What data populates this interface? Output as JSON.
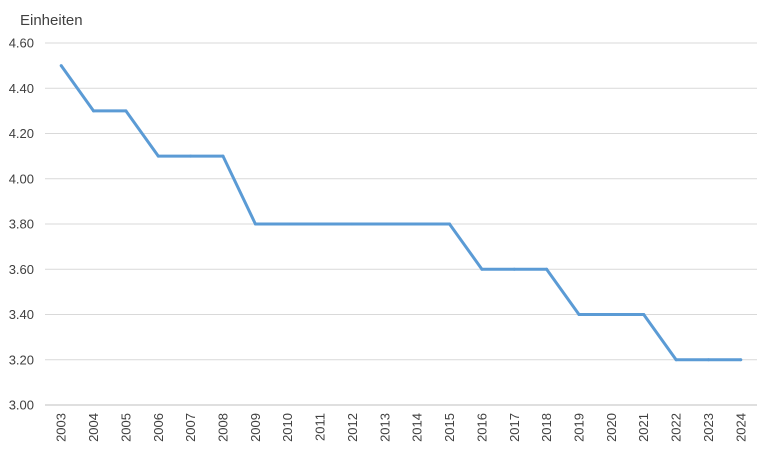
{
  "chart_data": {
    "type": "line",
    "unit_label": "Einheiten",
    "x": [
      "2003",
      "2004",
      "2005",
      "2006",
      "2007",
      "2008",
      "2009",
      "2010",
      "2011",
      "2012",
      "2013",
      "2014",
      "2015",
      "2016",
      "2017",
      "2018",
      "2019",
      "2020",
      "2021",
      "2022",
      "2023",
      "2024"
    ],
    "series": [
      {
        "values": [
          4.5,
          4.3,
          4.3,
          4.1,
          4.1,
          4.1,
          3.8,
          3.8,
          3.8,
          3.8,
          3.8,
          3.8,
          3.8,
          3.6,
          3.6,
          3.6,
          3.4,
          3.4,
          3.4,
          3.2,
          3.2,
          3.2
        ]
      }
    ],
    "ylim": [
      3.0,
      4.6
    ],
    "yticks": [
      "3.00",
      "3.20",
      "3.40",
      "3.60",
      "3.80",
      "4.00",
      "4.20",
      "4.40",
      "4.60"
    ],
    "grid": true,
    "legend": "none",
    "color": "#5b9bd5"
  }
}
